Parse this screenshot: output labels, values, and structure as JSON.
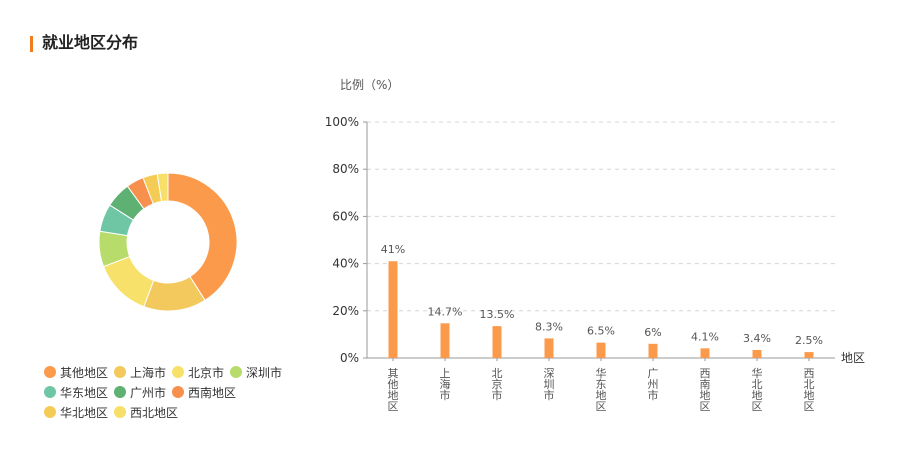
{
  "page": {
    "title": "就业地区分布",
    "accent": "#f07c1d"
  },
  "chart_data": [
    {
      "type": "pie",
      "style": "donut",
      "categories": [
        "其他地区",
        "上海市",
        "北京市",
        "深圳市",
        "华东地区",
        "广州市",
        "西南地区",
        "华北地区",
        "西北地区"
      ],
      "values": [
        41,
        14.7,
        13.5,
        8.3,
        6.5,
        6,
        4.1,
        3.4,
        2.5
      ],
      "colors": [
        "#fb9a4a",
        "#f3c95d",
        "#f8e16b",
        "#b7dc6b",
        "#6fc6a4",
        "#5fb073",
        "#f78f4d",
        "#f4cc55",
        "#f6e06a"
      ],
      "legend_position": "bottom-left"
    },
    {
      "type": "bar",
      "categories": [
        "其他地区",
        "上海市",
        "北京市",
        "深圳市",
        "华东地区",
        "广州市",
        "西南地区",
        "华北地区",
        "西北地区"
      ],
      "values": [
        41,
        14.7,
        13.5,
        8.3,
        6.5,
        6,
        4.1,
        3.4,
        2.5
      ],
      "data_labels": [
        "41%",
        "14.7%",
        "13.5%",
        "8.3%",
        "6.5%",
        "6%",
        "4.1%",
        "3.4%",
        "2.5%"
      ],
      "ylabel": "比例（%）",
      "xlabel": "地区",
      "ylim": [
        0,
        100
      ],
      "yticks": [
        "0%",
        "20%",
        "40%",
        "60%",
        "80%",
        "100%"
      ],
      "grid": true,
      "bar_color": "#fb9a4a"
    }
  ]
}
